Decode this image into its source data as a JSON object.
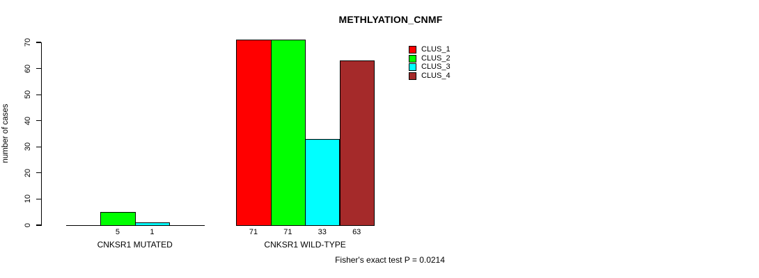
{
  "title": "METHLYATION_CNMF",
  "footer": "Fisher's exact test P = 0.0214",
  "chart_data": {
    "type": "bar",
    "title": "METHLYATION_CNMF",
    "xlabel": "",
    "ylabel": "number of cases",
    "ylim": [
      0,
      70
    ],
    "yticks": [
      0,
      10,
      20,
      30,
      40,
      50,
      60,
      70
    ],
    "grid": false,
    "legend_position": "top-right",
    "series": [
      {
        "name": "CLUS_1",
        "color": "#FF0000"
      },
      {
        "name": "CLUS_2",
        "color": "#00FF00"
      },
      {
        "name": "CLUS_3",
        "color": "#00FFFF"
      },
      {
        "name": "CLUS_4",
        "color": "#A52A2A"
      }
    ],
    "groups": [
      {
        "label": "CNKSR1 MUTATED",
        "values": [
          0,
          5,
          1,
          0
        ],
        "bar_labels": [
          "",
          "5",
          "1",
          ""
        ]
      },
      {
        "label": "CNKSR1 WILD-TYPE",
        "values": [
          71,
          71,
          33,
          63
        ],
        "bar_labels": [
          "71",
          "71",
          "33",
          "63"
        ]
      }
    ],
    "annotation": "Fisher's exact test P = 0.0214"
  }
}
